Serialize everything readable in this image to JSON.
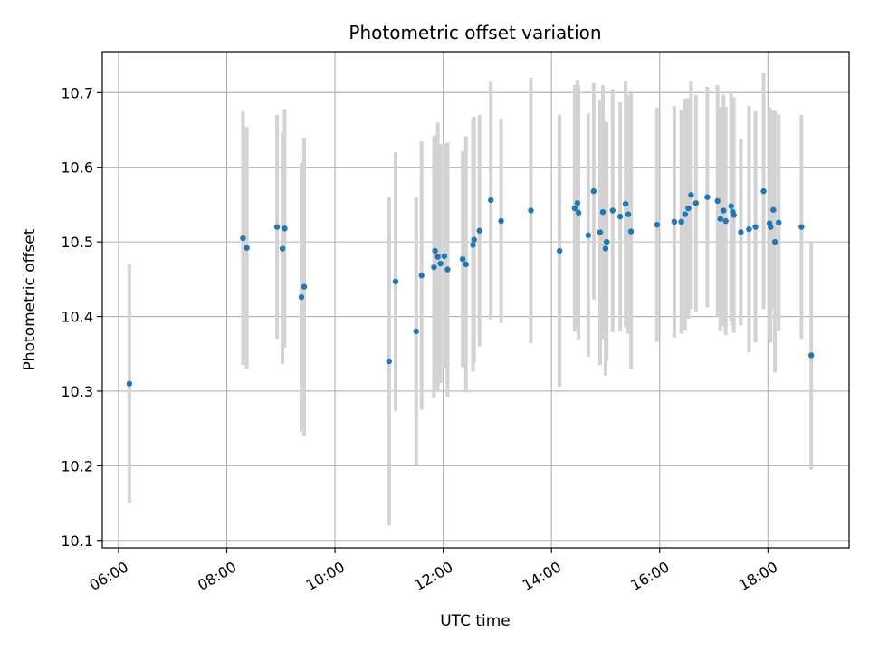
{
  "chart_data": {
    "type": "scatter",
    "title": "Photometric offset variation",
    "xlabel": "UTC time",
    "ylabel": "Photometric offset",
    "xlim_hours": [
      5.7,
      19.5
    ],
    "ylim": [
      10.09,
      10.755
    ],
    "x_ticks": [
      {
        "hour": 6,
        "label": "06:00"
      },
      {
        "hour": 8,
        "label": "08:00"
      },
      {
        "hour": 10,
        "label": "10:00"
      },
      {
        "hour": 12,
        "label": "12:00"
      },
      {
        "hour": 14,
        "label": "14:00"
      },
      {
        "hour": 16,
        "label": "16:00"
      },
      {
        "hour": 18,
        "label": "18:00"
      }
    ],
    "y_ticks": [
      {
        "value": 10.1,
        "label": "10.1"
      },
      {
        "value": 10.2,
        "label": "10.2"
      },
      {
        "value": 10.3,
        "label": "10.3"
      },
      {
        "value": 10.4,
        "label": "10.4"
      },
      {
        "value": 10.5,
        "label": "10.5"
      },
      {
        "value": 10.6,
        "label": "10.6"
      },
      {
        "value": 10.7,
        "label": "10.7"
      }
    ],
    "grid": true,
    "colors": {
      "points": "#1f77b4",
      "errorbars": "#d3d3d3",
      "grid": "#b0b0b0"
    },
    "points": [
      {
        "hour": 6.2,
        "y": 10.31,
        "yerr": 0.16
      },
      {
        "hour": 8.3,
        "y": 10.505,
        "yerr": 0.17
      },
      {
        "hour": 8.37,
        "y": 10.492,
        "yerr": 0.162
      },
      {
        "hour": 8.93,
        "y": 10.52,
        "yerr": 0.15
      },
      {
        "hour": 9.03,
        "y": 10.491,
        "yerr": 0.155
      },
      {
        "hour": 9.07,
        "y": 10.518,
        "yerr": 0.16
      },
      {
        "hour": 9.38,
        "y": 10.426,
        "yerr": 0.18
      },
      {
        "hour": 9.43,
        "y": 10.44,
        "yerr": 0.2
      },
      {
        "hour": 11.0,
        "y": 10.34,
        "yerr": 0.22
      },
      {
        "hour": 11.12,
        "y": 10.447,
        "yerr": 0.173
      },
      {
        "hour": 11.5,
        "y": 10.38,
        "yerr": 0.18
      },
      {
        "hour": 11.6,
        "y": 10.455,
        "yerr": 0.18
      },
      {
        "hour": 11.83,
        "y": 10.466,
        "yerr": 0.175
      },
      {
        "hour": 11.85,
        "y": 10.488,
        "yerr": 0.155
      },
      {
        "hour": 11.9,
        "y": 10.48,
        "yerr": 0.18
      },
      {
        "hour": 11.95,
        "y": 10.471,
        "yerr": 0.16
      },
      {
        "hour": 12.02,
        "y": 10.481,
        "yerr": 0.15
      },
      {
        "hour": 12.08,
        "y": 10.463,
        "yerr": 0.17
      },
      {
        "hour": 12.36,
        "y": 10.477,
        "yerr": 0.145
      },
      {
        "hour": 12.42,
        "y": 10.47,
        "yerr": 0.172
      },
      {
        "hour": 12.55,
        "y": 10.496,
        "yerr": 0.17
      },
      {
        "hour": 12.57,
        "y": 10.503,
        "yerr": 0.165
      },
      {
        "hour": 12.67,
        "y": 10.515,
        "yerr": 0.155
      },
      {
        "hour": 12.88,
        "y": 10.556,
        "yerr": 0.16
      },
      {
        "hour": 13.07,
        "y": 10.528,
        "yerr": 0.137
      },
      {
        "hour": 13.62,
        "y": 10.542,
        "yerr": 0.178
      },
      {
        "hour": 14.15,
        "y": 10.488,
        "yerr": 0.182
      },
      {
        "hour": 14.43,
        "y": 10.545,
        "yerr": 0.165
      },
      {
        "hour": 14.48,
        "y": 10.552,
        "yerr": 0.165
      },
      {
        "hour": 14.5,
        "y": 10.539,
        "yerr": 0.17
      },
      {
        "hour": 14.68,
        "y": 10.509,
        "yerr": 0.163
      },
      {
        "hour": 14.78,
        "y": 10.568,
        "yerr": 0.145
      },
      {
        "hour": 14.9,
        "y": 10.513,
        "yerr": 0.178
      },
      {
        "hour": 14.95,
        "y": 10.54,
        "yerr": 0.17
      },
      {
        "hour": 15.0,
        "y": 10.491,
        "yerr": 0.17
      },
      {
        "hour": 15.02,
        "y": 10.5,
        "yerr": 0.16
      },
      {
        "hour": 15.13,
        "y": 10.542,
        "yerr": 0.163
      },
      {
        "hour": 15.27,
        "y": 10.534,
        "yerr": 0.153
      },
      {
        "hour": 15.37,
        "y": 10.551,
        "yerr": 0.165
      },
      {
        "hour": 15.42,
        "y": 10.537,
        "yerr": 0.16
      },
      {
        "hour": 15.47,
        "y": 10.514,
        "yerr": 0.185
      },
      {
        "hour": 15.95,
        "y": 10.523,
        "yerr": 0.157
      },
      {
        "hour": 16.27,
        "y": 10.527,
        "yerr": 0.155
      },
      {
        "hour": 16.4,
        "y": 10.527,
        "yerr": 0.15
      },
      {
        "hour": 16.47,
        "y": 10.537,
        "yerr": 0.155
      },
      {
        "hour": 16.53,
        "y": 10.545,
        "yerr": 0.148
      },
      {
        "hour": 16.58,
        "y": 10.563,
        "yerr": 0.153
      },
      {
        "hour": 16.67,
        "y": 10.552,
        "yerr": 0.145
      },
      {
        "hour": 16.88,
        "y": 10.56,
        "yerr": 0.148
      },
      {
        "hour": 17.07,
        "y": 10.555,
        "yerr": 0.155
      },
      {
        "hour": 17.12,
        "y": 10.531,
        "yerr": 0.15
      },
      {
        "hour": 17.18,
        "y": 10.542,
        "yerr": 0.155
      },
      {
        "hour": 17.22,
        "y": 10.528,
        "yerr": 0.153
      },
      {
        "hour": 17.32,
        "y": 10.548,
        "yerr": 0.155
      },
      {
        "hour": 17.35,
        "y": 10.54,
        "yerr": 0.152
      },
      {
        "hour": 17.37,
        "y": 10.536,
        "yerr": 0.158
      },
      {
        "hour": 17.5,
        "y": 10.513,
        "yerr": 0.125
      },
      {
        "hour": 17.65,
        "y": 10.517,
        "yerr": 0.165
      },
      {
        "hour": 17.77,
        "y": 10.52,
        "yerr": 0.155
      },
      {
        "hour": 17.92,
        "y": 10.568,
        "yerr": 0.158
      },
      {
        "hour": 18.03,
        "y": 10.525,
        "yerr": 0.155
      },
      {
        "hour": 18.05,
        "y": 10.52,
        "yerr": 0.155
      },
      {
        "hour": 18.1,
        "y": 10.543,
        "yerr": 0.133
      },
      {
        "hour": 18.13,
        "y": 10.5,
        "yerr": 0.175
      },
      {
        "hour": 18.2,
        "y": 10.526,
        "yerr": 0.145
      },
      {
        "hour": 18.62,
        "y": 10.52,
        "yerr": 0.15
      },
      {
        "hour": 18.8,
        "y": 10.348,
        "yerr": 0.153
      }
    ]
  }
}
